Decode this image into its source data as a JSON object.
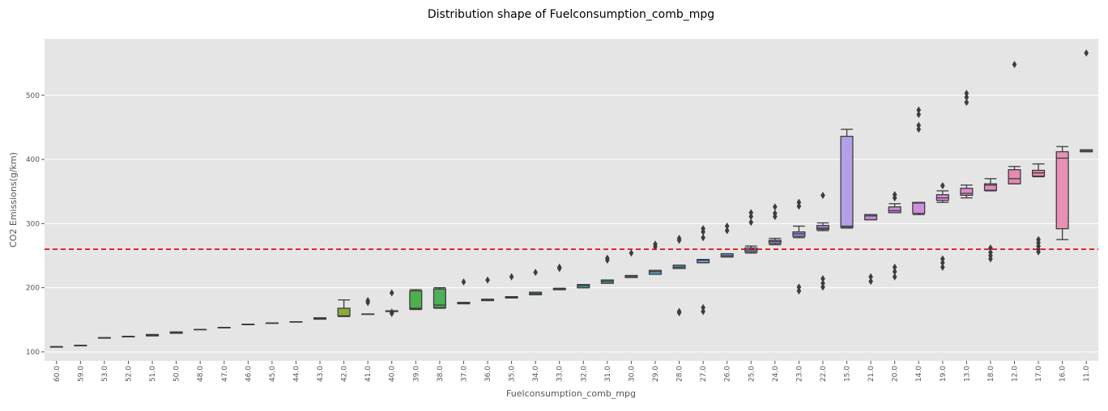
{
  "chart_data": {
    "type": "box",
    "title": "Distribution shape of Fuelconsumption_comb_mpg",
    "x_label": "Fuelconsumption_comb_mpg",
    "y_label": "CO2 Emissions(g/km)",
    "categories": [
      "60.0",
      "59.0",
      "53.0",
      "52.0",
      "51.0",
      "50.0",
      "48.0",
      "47.0",
      "46.0",
      "45.0",
      "44.0",
      "43.0",
      "42.0",
      "41.0",
      "40.0",
      "39.0",
      "38.0",
      "37.0",
      "36.0",
      "35.0",
      "34.0",
      "33.0",
      "32.0",
      "31.0",
      "30.0",
      "29.0",
      "28.0",
      "27.0",
      "26.0",
      "25.0",
      "24.0",
      "23.0",
      "22.0",
      "15.0",
      "21.0",
      "20.0",
      "14.0",
      "19.0",
      "13.0",
      "18.0",
      "12.0",
      "17.0",
      "16.0",
      "11.0"
    ],
    "stats": [
      [
        108,
        108,
        108,
        108,
        108
      ],
      [
        110,
        110,
        110,
        110,
        110
      ],
      [
        122,
        122,
        122,
        122,
        122
      ],
      [
        124,
        124,
        124,
        124,
        124
      ],
      [
        125,
        125,
        126,
        127,
        127
      ],
      [
        129,
        129,
        130,
        131,
        131
      ],
      [
        135,
        135,
        135,
        135,
        135
      ],
      [
        138,
        138,
        138,
        138,
        138
      ],
      [
        143,
        143,
        143,
        143,
        143
      ],
      [
        145,
        145,
        145,
        145,
        145
      ],
      [
        147,
        147,
        147,
        147,
        147
      ],
      [
        151,
        151,
        152,
        153,
        153
      ],
      [
        155,
        156,
        156,
        168,
        181
      ],
      [
        159,
        159,
        159,
        159,
        159
      ],
      [
        163,
        163,
        163,
        164,
        164
      ],
      [
        166,
        167,
        168,
        195,
        197
      ],
      [
        168,
        169,
        173,
        198,
        200
      ],
      [
        175,
        175,
        176,
        177,
        177
      ],
      [
        180,
        180,
        181,
        182,
        182
      ],
      [
        184,
        184,
        185,
        186,
        186
      ],
      [
        189,
        189,
        191,
        193,
        193
      ],
      [
        197,
        197,
        198,
        199,
        199
      ],
      [
        200,
        200,
        203,
        205,
        205
      ],
      [
        207,
        207,
        210,
        212,
        212
      ],
      [
        216,
        216,
        217,
        219,
        219
      ],
      [
        221,
        221,
        225,
        227,
        227
      ],
      [
        230,
        230,
        232,
        235,
        235
      ],
      [
        239,
        239,
        243,
        244,
        244
      ],
      [
        248,
        248,
        250,
        253,
        253
      ],
      [
        254,
        256,
        259,
        262,
        265
      ],
      [
        267,
        269,
        272,
        274,
        277
      ],
      [
        278,
        280,
        284,
        287,
        296
      ],
      [
        289,
        291,
        293,
        297,
        301
      ],
      [
        293,
        294,
        296,
        436,
        447
      ],
      [
        306,
        306,
        312,
        314,
        314
      ],
      [
        317,
        317,
        320,
        326,
        331
      ],
      [
        314,
        316,
        332,
        333,
        333
      ],
      [
        333,
        336,
        340,
        345,
        351
      ],
      [
        340,
        344,
        347,
        355,
        360
      ],
      [
        351,
        352,
        360,
        362,
        370
      ],
      [
        362,
        362,
        370,
        384,
        389
      ],
      [
        373,
        374,
        379,
        383,
        393
      ],
      [
        275,
        292,
        402,
        412,
        420
      ],
      [
        412,
        412,
        414,
        415,
        415
      ]
    ],
    "outliers": [
      [],
      [],
      [],
      [],
      [],
      [],
      [],
      [],
      [],
      [],
      [],
      [],
      [],
      [
        177,
        180
      ],
      [
        192,
        160,
        162
      ],
      [],
      [],
      [
        209
      ],
      [
        212
      ],
      [
        217
      ],
      [
        224
      ],
      [
        232,
        230
      ],
      [],
      [
        246,
        243
      ],
      [
        254
      ],
      [
        268,
        264
      ],
      [
        277,
        274,
        163,
        161
      ],
      [
        292,
        287,
        278,
        169,
        163
      ],
      [
        296,
        289
      ],
      [
        317,
        311,
        302
      ],
      [
        326,
        316,
        311
      ],
      [
        333,
        327,
        201,
        195
      ],
      [
        344,
        214,
        207,
        201
      ],
      [],
      [
        217,
        210
      ],
      [
        345,
        340,
        232,
        225,
        217
      ],
      [
        477,
        470,
        453,
        447
      ],
      [
        359,
        245,
        239,
        232
      ],
      [
        503,
        497,
        489
      ],
      [
        262,
        255,
        250,
        245
      ],
      [
        548
      ],
      [
        275,
        270,
        265,
        260,
        256
      ],
      [],
      [
        566
      ]
    ],
    "colors": [
      "#e8837a",
      "#e6867a",
      "#e38a6c",
      "#dd8e5e",
      "#d69350",
      "#cd9848",
      "#c29c44",
      "#b8a13f",
      "#aea33d",
      "#a3a63b",
      "#98a93a",
      "#8aab39",
      "#8fa83b",
      "#7aae3c",
      "#69b040",
      "#4eb04a",
      "#4caf59",
      "#4bb068",
      "#4ab077",
      "#4aaf85",
      "#4aae92",
      "#4aad9d",
      "#4aaca8",
      "#4aabb2",
      "#4caabd",
      "#50a8c8",
      "#57a5d3",
      "#62a1dc",
      "#709de4",
      "#8098e9",
      "#9093eb",
      "#9e8eea",
      "#aa89e8",
      "#b4a0e8",
      "#bf88e3",
      "#c887dd",
      "#d28cdf",
      "#d88ad6",
      "#de89cc",
      "#e38ac2",
      "#e789b6",
      "#e98aac",
      "#e891b4",
      "#e98c9e"
    ],
    "ylim": [
      86,
      588
    ],
    "yticks": [
      100,
      200,
      300,
      400,
      500
    ],
    "grid": true,
    "hline": 260,
    "hline_color": "#dd0000"
  }
}
